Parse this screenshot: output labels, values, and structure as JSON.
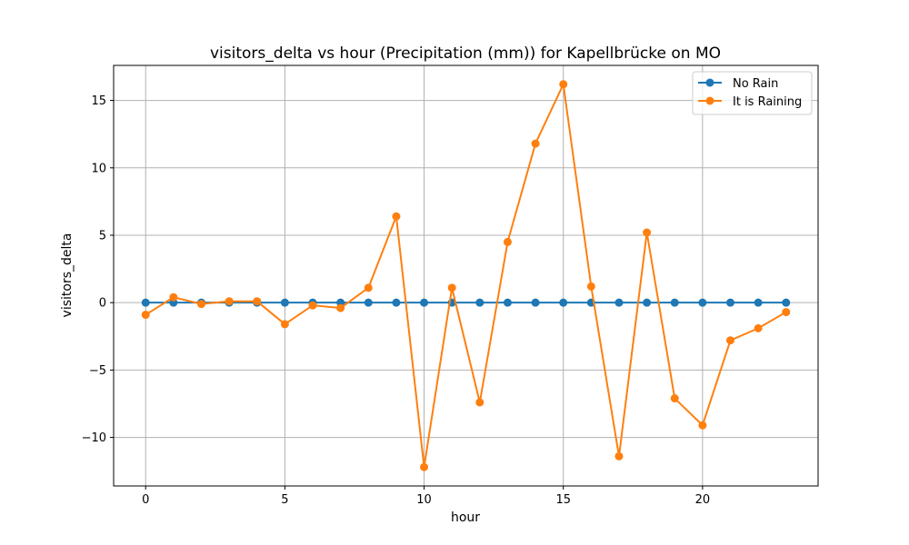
{
  "chart_data": {
    "type": "line",
    "title": "visitors_delta vs hour (Precipitation (mm)) for Kapellbrücke on MO",
    "xlabel": "hour",
    "ylabel": "visitors_delta",
    "xlim": [
      -1.15,
      24.15
    ],
    "ylim": [
      -13.6,
      17.6
    ],
    "xticks": [
      0,
      5,
      10,
      15,
      20
    ],
    "yticks": [
      -10,
      -5,
      0,
      5,
      10,
      15
    ],
    "xtick_labels": [
      "0",
      "5",
      "10",
      "15",
      "20"
    ],
    "ytick_labels": [
      "−10",
      "−5",
      "0",
      "5",
      "10",
      "15"
    ],
    "grid": true,
    "legend_position": "top-right",
    "x": [
      0,
      1,
      2,
      3,
      4,
      5,
      6,
      7,
      8,
      9,
      10,
      11,
      12,
      13,
      14,
      15,
      16,
      17,
      18,
      19,
      20,
      21,
      22,
      23
    ],
    "series": [
      {
        "name": "No Rain",
        "color": "#1f77b4",
        "marker": "circle",
        "values": [
          0,
          0,
          0,
          0,
          0,
          0,
          0,
          0,
          0,
          0,
          0,
          0,
          0,
          0,
          0,
          0,
          0,
          0,
          0,
          0,
          0,
          0,
          0,
          0
        ]
      },
      {
        "name": "It is Raining",
        "color": "#ff7f0e",
        "marker": "circle",
        "values": [
          -0.9,
          0.4,
          -0.1,
          0.1,
          0.1,
          -1.6,
          -0.2,
          -0.4,
          1.1,
          6.4,
          -12.2,
          1.1,
          -7.4,
          4.5,
          11.8,
          16.2,
          1.2,
          -11.4,
          5.2,
          -7.1,
          -9.1,
          -2.8,
          -1.9,
          -0.7
        ]
      }
    ]
  }
}
